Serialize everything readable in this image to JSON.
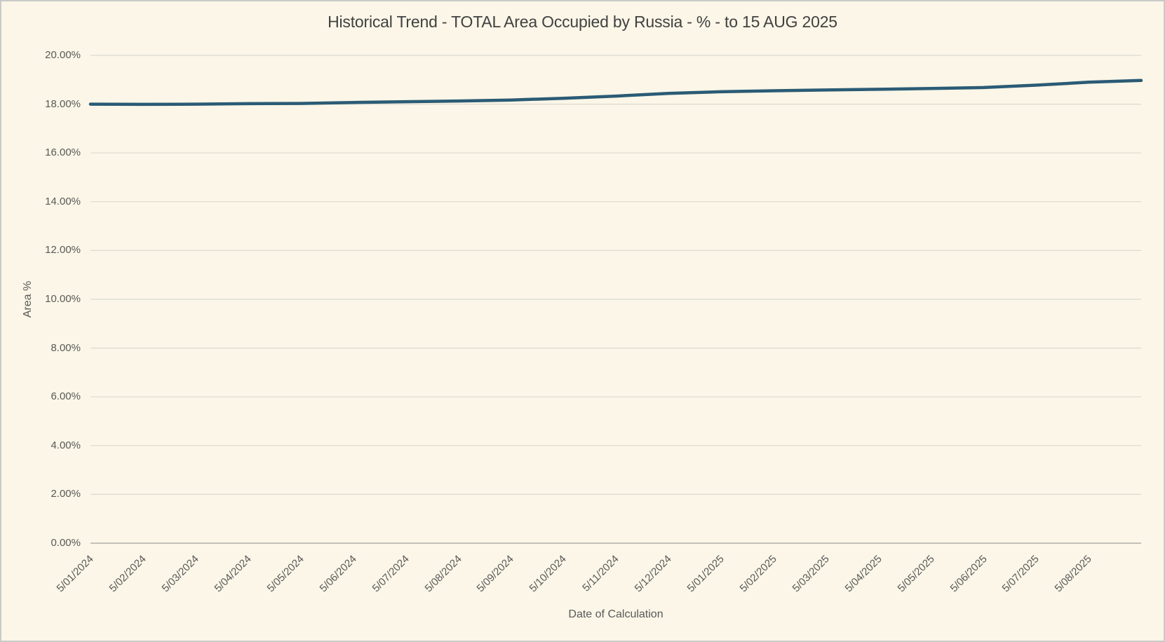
{
  "window": {
    "background_color": "#fbf6e7",
    "border_color": "#c9c9c9"
  },
  "chart_data": {
    "type": "line",
    "title": "Historical Trend - TOTAL Area Occupied by Russia - % - to 15 AUG 2025",
    "xlabel": "Date of Calculation",
    "ylabel": "Area %",
    "ylim": [
      0,
      20
    ],
    "grid": "horizontal",
    "legend": "none",
    "line_color": "#2b5b75",
    "gridline_color": "#dbd9d1",
    "axis_line_color": "#c2c0b8",
    "y_ticks": [
      {
        "value": 0,
        "label": "0.00%"
      },
      {
        "value": 2,
        "label": "2.00%"
      },
      {
        "value": 4,
        "label": "4.00%"
      },
      {
        "value": 6,
        "label": "6.00%"
      },
      {
        "value": 8,
        "label": "8.00%"
      },
      {
        "value": 10,
        "label": "10.00%"
      },
      {
        "value": 12,
        "label": "12.00%"
      },
      {
        "value": 14,
        "label": "14.00%"
      },
      {
        "value": 16,
        "label": "16.00%"
      },
      {
        "value": 18,
        "label": "18.00%"
      },
      {
        "value": 20,
        "label": "20.00%"
      }
    ],
    "x_tick_labels": [
      "5/01/2024",
      "5/02/2024",
      "5/03/2024",
      "5/04/2024",
      "5/05/2024",
      "5/06/2024",
      "5/07/2024",
      "5/08/2024",
      "5/09/2024",
      "5/10/2024",
      "5/11/2024",
      "5/12/2024",
      "5/01/2025",
      "5/02/2025",
      "5/03/2025",
      "5/04/2025",
      "5/05/2025",
      "5/06/2025",
      "5/07/2025",
      "5/08/2025"
    ],
    "series": [
      {
        "name": "Area %",
        "color": "#2b5b75",
        "points": [
          {
            "date": "5/01/2024",
            "value": 18.0
          },
          {
            "date": "5/02/2024",
            "value": 17.99
          },
          {
            "date": "5/03/2024",
            "value": 18.0
          },
          {
            "date": "5/04/2024",
            "value": 18.02
          },
          {
            "date": "5/05/2024",
            "value": 18.03
          },
          {
            "date": "5/06/2024",
            "value": 18.07
          },
          {
            "date": "5/07/2024",
            "value": 18.1
          },
          {
            "date": "5/08/2024",
            "value": 18.13
          },
          {
            "date": "5/09/2024",
            "value": 18.17
          },
          {
            "date": "5/10/2024",
            "value": 18.24
          },
          {
            "date": "5/11/2024",
            "value": 18.33
          },
          {
            "date": "5/12/2024",
            "value": 18.44
          },
          {
            "date": "5/01/2025",
            "value": 18.51
          },
          {
            "date": "5/02/2025",
            "value": 18.55
          },
          {
            "date": "5/03/2025",
            "value": 18.58
          },
          {
            "date": "5/04/2025",
            "value": 18.61
          },
          {
            "date": "5/05/2025",
            "value": 18.64
          },
          {
            "date": "5/06/2025",
            "value": 18.68
          },
          {
            "date": "5/07/2025",
            "value": 18.78
          },
          {
            "date": "5/08/2025",
            "value": 18.9
          },
          {
            "date": "15 AUG 2025",
            "value": 18.97
          }
        ]
      }
    ]
  }
}
